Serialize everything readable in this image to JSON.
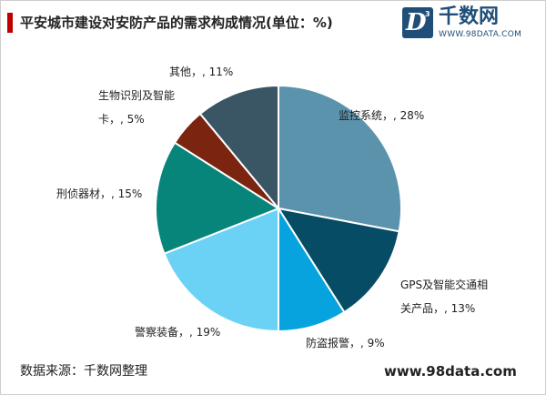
{
  "title": "平安城市建设对安防产品的需求构成情况(单位：%)",
  "logo": {
    "letter": "D",
    "superscript": "3",
    "name": "千数网",
    "url": "WWW.98DATA.COM"
  },
  "footer": {
    "source": "数据来源：千数网整理",
    "site": "www.98data.com"
  },
  "chart_data": {
    "type": "pie",
    "title": "平安城市建设对安防产品的需求构成情况(单位：%)",
    "unit": "%",
    "slices": [
      {
        "name": "监控系统",
        "value": 28,
        "color": "#5b93ad",
        "label_lines": [
          "监控系统，, 28%"
        ]
      },
      {
        "name": "GPS及智能交通相关产品",
        "value": 13,
        "color": "#064c64",
        "label_lines": [
          "GPS及智能交通相",
          "关产品，, 13%"
        ]
      },
      {
        "name": "防盗报警",
        "value": 9,
        "color": "#06a3df",
        "label_lines": [
          "防盗报警，, 9%"
        ]
      },
      {
        "name": "警察装备",
        "value": 19,
        "color": "#6bd2f6",
        "label_lines": [
          "警察装备，, 19%"
        ]
      },
      {
        "name": "刑侦器材",
        "value": 15,
        "color": "#08857a",
        "label_lines": [
          "刑侦器材，, 15%"
        ]
      },
      {
        "name": "生物识别及智能卡",
        "value": 5,
        "color": "#7b2410",
        "label_lines": [
          "生物识别及智能",
          "卡，, 5%"
        ]
      },
      {
        "name": "其他",
        "value": 11,
        "color": "#3a5564",
        "label_lines": [
          "其他，, 11%"
        ]
      }
    ]
  }
}
